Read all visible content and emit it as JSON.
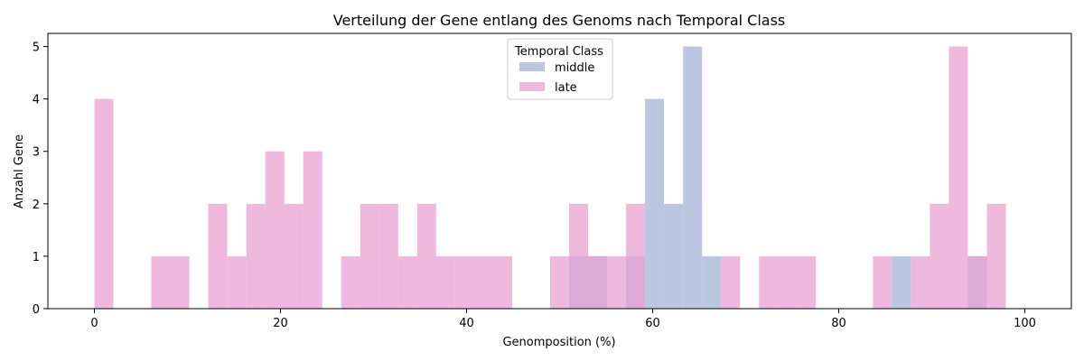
{
  "chart_data": {
    "type": "bar",
    "title": "Verteilung der Gene entlang des Genoms nach Temporal Class",
    "xlabel": "Genomposition (%)",
    "ylabel": "Anzahl Gene",
    "xlim": [
      -5,
      105
    ],
    "ylim": [
      0,
      5.25
    ],
    "x_ticks": [
      0,
      20,
      40,
      60,
      80,
      100
    ],
    "y_ticks": [
      0,
      1,
      2,
      3,
      4,
      5
    ],
    "bin_width": 2.04,
    "grid": false,
    "legend": {
      "title": "Temporal Class",
      "placement": "top-center"
    },
    "series": [
      {
        "name": "middle",
        "color": "#b4c1de",
        "opacity": 0.9,
        "bins": [
          {
            "x": 51.02,
            "value": 1
          },
          {
            "x": 53.06,
            "value": 1
          },
          {
            "x": 57.14,
            "value": 1
          },
          {
            "x": 59.18,
            "value": 4
          },
          {
            "x": 61.22,
            "value": 2
          },
          {
            "x": 63.27,
            "value": 5
          },
          {
            "x": 65.31,
            "value": 1
          },
          {
            "x": 85.71,
            "value": 1
          },
          {
            "x": 93.88,
            "value": 1
          }
        ]
      },
      {
        "name": "late",
        "color": "#e8a1d0",
        "opacity": 0.75,
        "bins": [
          {
            "x": 0.0,
            "value": 4
          },
          {
            "x": 6.12,
            "value": 1
          },
          {
            "x": 8.16,
            "value": 1
          },
          {
            "x": 12.24,
            "value": 2
          },
          {
            "x": 14.29,
            "value": 1
          },
          {
            "x": 16.33,
            "value": 2
          },
          {
            "x": 18.37,
            "value": 3
          },
          {
            "x": 20.41,
            "value": 2
          },
          {
            "x": 22.45,
            "value": 3
          },
          {
            "x": 26.53,
            "value": 1
          },
          {
            "x": 28.57,
            "value": 2
          },
          {
            "x": 30.61,
            "value": 2
          },
          {
            "x": 32.65,
            "value": 1
          },
          {
            "x": 34.69,
            "value": 2
          },
          {
            "x": 36.73,
            "value": 1
          },
          {
            "x": 38.78,
            "value": 1
          },
          {
            "x": 40.82,
            "value": 1
          },
          {
            "x": 42.86,
            "value": 1
          },
          {
            "x": 48.98,
            "value": 1
          },
          {
            "x": 51.02,
            "value": 2
          },
          {
            "x": 53.06,
            "value": 1
          },
          {
            "x": 55.1,
            "value": 1
          },
          {
            "x": 57.14,
            "value": 2
          },
          {
            "x": 67.35,
            "value": 1
          },
          {
            "x": 71.43,
            "value": 1
          },
          {
            "x": 73.47,
            "value": 1
          },
          {
            "x": 75.51,
            "value": 1
          },
          {
            "x": 83.67,
            "value": 1
          },
          {
            "x": 87.76,
            "value": 1
          },
          {
            "x": 89.8,
            "value": 2
          },
          {
            "x": 91.84,
            "value": 5
          },
          {
            "x": 93.88,
            "value": 1
          },
          {
            "x": 95.92,
            "value": 2
          }
        ]
      }
    ]
  }
}
